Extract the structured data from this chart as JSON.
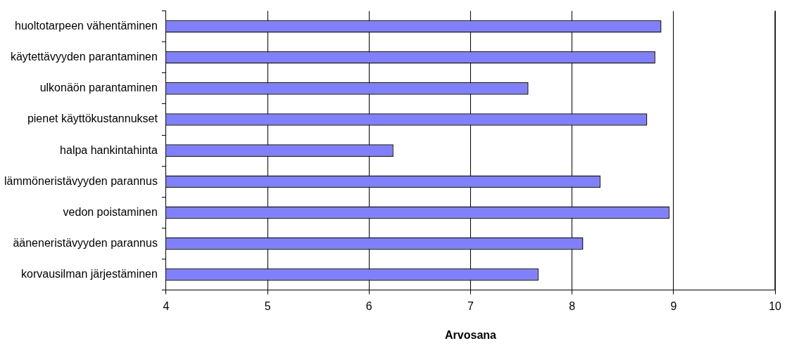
{
  "chart_data": {
    "type": "bar",
    "orientation": "horizontal",
    "xlabel": "Arvosana",
    "categories": [
      "huoltotarpeen vähentäminen",
      "käytettävyyden parantaminen",
      "ulkonäön parantaminen",
      "pienet käyttökustannukset",
      "halpa hankintahinta",
      "lämmöneristävyyden parannus",
      "vedon poistaminen",
      "ääneneristävyyden parannus",
      "korvausilman järjestäminen"
    ],
    "values": [
      8.88,
      8.82,
      7.57,
      8.74,
      6.24,
      8.28,
      8.96,
      8.11,
      7.67
    ],
    "color": "#8080ff",
    "xlim": [
      4,
      10
    ],
    "xticks": [
      4,
      5,
      6,
      7,
      8,
      9,
      10
    ],
    "grid": "x",
    "legend": false
  }
}
